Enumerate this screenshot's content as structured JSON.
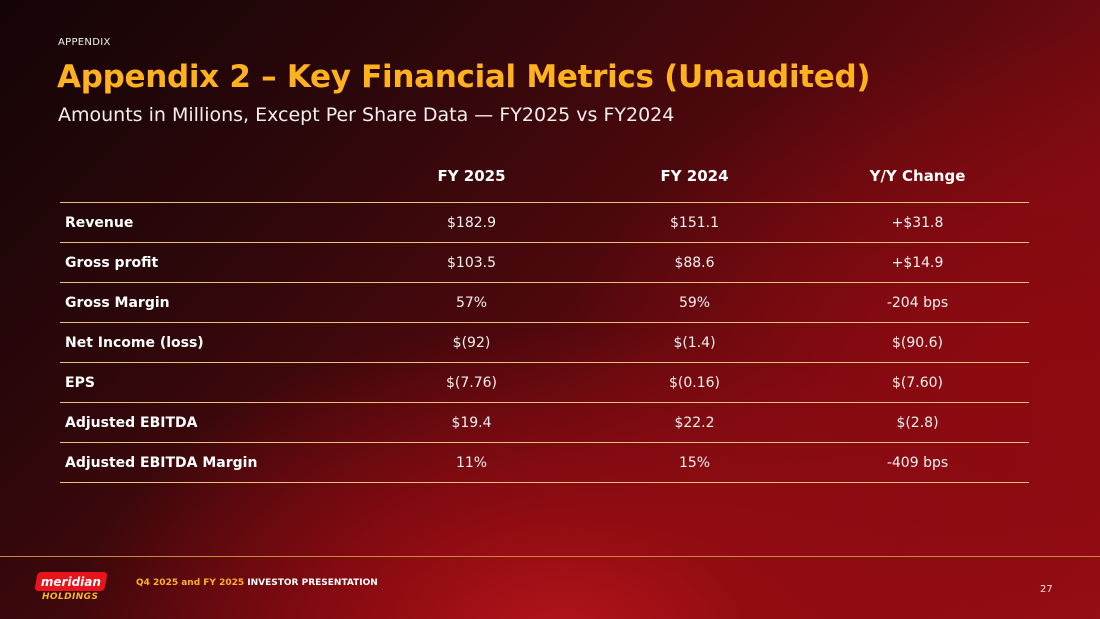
{
  "header": {
    "kicker": "APPENDIX",
    "title": "Appendix 2 – Key Financial Metrics (Unaudited)",
    "subtitle": "Amounts in Millions, Except Per Share Data — FY2025 vs FY2024"
  },
  "table": {
    "columns": [
      "",
      "FY 2025",
      "FY 2024",
      "Y/Y Change"
    ],
    "rows": [
      {
        "label": "Revenue",
        "fy2025": "$182.9",
        "fy2024": "$151.1",
        "change": "+$31.8"
      },
      {
        "label": "Gross profit",
        "fy2025": "$103.5",
        "fy2024": "$88.6",
        "change": "+$14.9"
      },
      {
        "label": "Gross Margin",
        "fy2025": "57%",
        "fy2024": "59%",
        "change": "-204 bps"
      },
      {
        "label": "Net Income (loss)",
        "fy2025": "$(92)",
        "fy2024": "$(1.4)",
        "change": "$(90.6)"
      },
      {
        "label": "EPS",
        "fy2025": "$(7.76)",
        "fy2024": "$(0.16)",
        "change": "$(7.60)"
      },
      {
        "label": "Adjusted EBITDA",
        "fy2025": "$19.4",
        "fy2024": "$22.2",
        "change": "$(2.8)"
      },
      {
        "label": "Adjusted EBITDA Margin",
        "fy2025": "11%",
        "fy2024": "15%",
        "change": "-409 bps"
      }
    ]
  },
  "footer": {
    "logo_top": "meridian",
    "logo_bottom": "HOLDINGS",
    "presentation_highlight": "Q4 2025 and FY 2025",
    "presentation_rest": " INVESTOR PRESENTATION",
    "page_number": "27"
  },
  "colors": {
    "accent": "#ffb21e",
    "brand_red": "#e8141c",
    "rule": "#e9c07a"
  }
}
